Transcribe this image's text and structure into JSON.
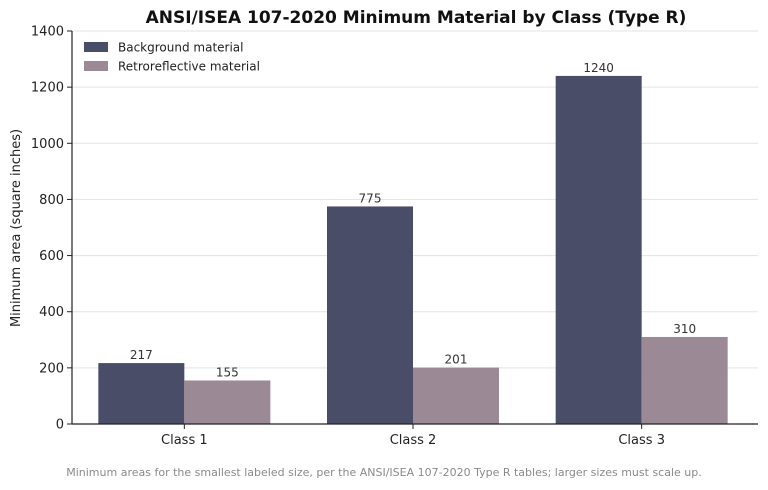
{
  "chart_data": {
    "type": "bar",
    "title": "ANSI/ISEA 107-2020 Minimum Material by Class (Type R)",
    "xlabel": "",
    "ylabel": "Minimum area (square inches)",
    "categories": [
      "Class 1",
      "Class 2",
      "Class 3"
    ],
    "series": [
      {
        "name": "Background material",
        "values": [
          217,
          775,
          1240
        ],
        "color": "#4a4d68"
      },
      {
        "name": "Retroreflective material",
        "values": [
          155,
          201,
          310
        ],
        "color": "#9b8996"
      }
    ],
    "ylim": [
      0,
      1400
    ],
    "yticks": [
      0,
      200,
      400,
      600,
      800,
      1000,
      1200,
      1400
    ],
    "grid": "horizontal",
    "legend": "top-left"
  },
  "caption": "Minimum areas for the smallest labeled size, per the ANSI/ISEA 107-2020 Type R tables; larger sizes must scale up."
}
